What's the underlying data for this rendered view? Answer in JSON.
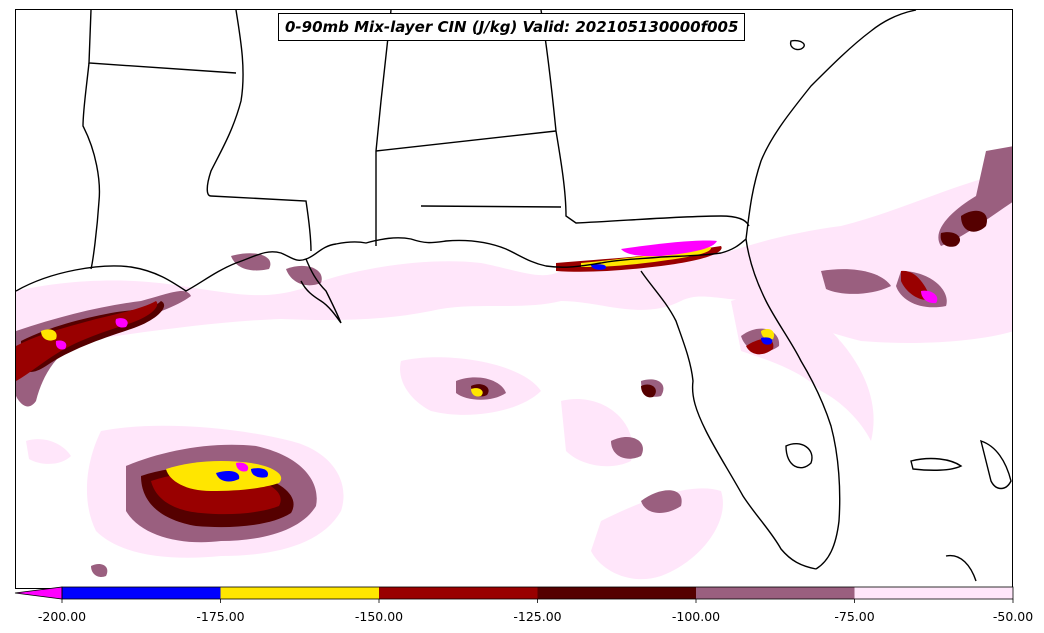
{
  "title": "0-90mb Mix-layer CIN (J/kg) Valid: 202105130000f005",
  "colorbar": {
    "min": -200,
    "max": -50,
    "extend": "min",
    "under_color": "#ff00ff",
    "tick_labels": [
      "-200.00",
      "-175.00",
      "-150.00",
      "-125.00",
      "-100.00",
      "-75.00",
      "-50.00"
    ],
    "bins": [
      {
        "from": -200,
        "to": -175,
        "color": "#0000ff"
      },
      {
        "from": -175,
        "to": -150,
        "color": "#ffe600"
      },
      {
        "from": -150,
        "to": -125,
        "color": "#990000"
      },
      {
        "from": -125,
        "to": -100,
        "color": "#550000"
      },
      {
        "from": -100,
        "to": -75,
        "color": "#9a5f7f"
      },
      {
        "from": -75,
        "to": -50,
        "color": "#ffe6fa"
      }
    ]
  }
}
